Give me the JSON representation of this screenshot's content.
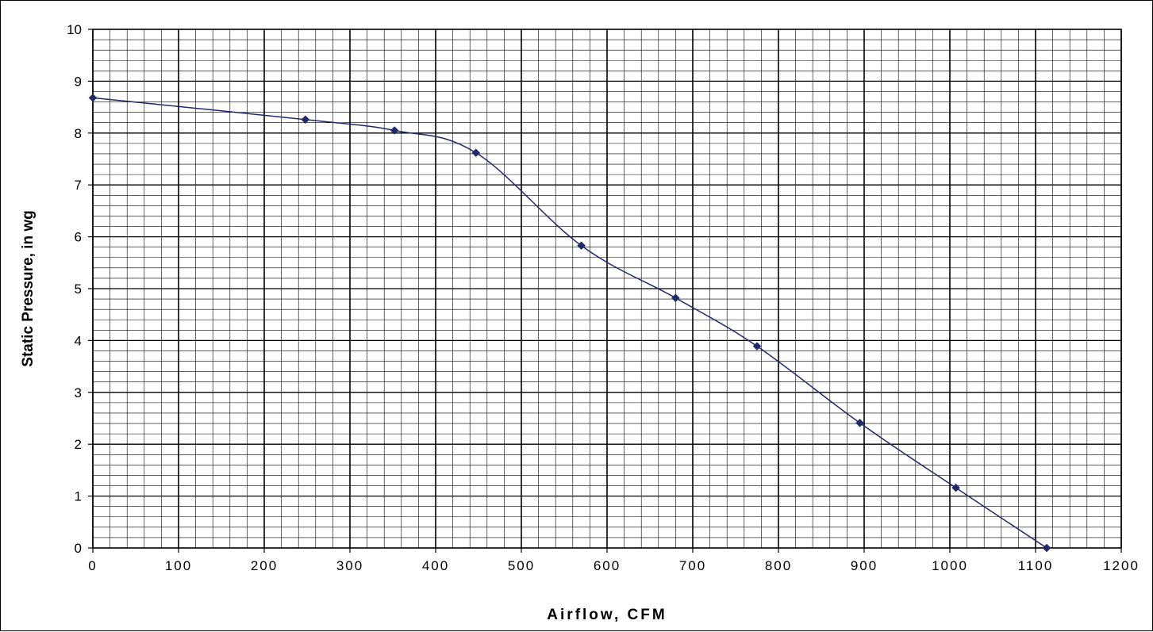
{
  "chart_data": {
    "type": "line",
    "title": "",
    "xlabel": "Airflow, CFM",
    "ylabel": "Static Pressure, in wg",
    "xlim": [
      0,
      1200
    ],
    "ylim": [
      0,
      10
    ],
    "x_ticks": [
      0,
      100,
      200,
      300,
      400,
      500,
      600,
      700,
      800,
      900,
      1000,
      1100,
      1200
    ],
    "y_ticks": [
      0,
      1,
      2,
      3,
      4,
      5,
      6,
      7,
      8,
      9,
      10
    ],
    "grid": true,
    "legend": "none",
    "series": [
      {
        "x": [
          0,
          248,
          352,
          447,
          570,
          680,
          775,
          895,
          1007,
          1113
        ],
        "y": [
          8.68,
          8.26,
          8.05,
          7.62,
          5.83,
          4.82,
          3.89,
          2.41,
          1.16,
          0
        ],
        "color": "#1f2a6b",
        "marker": "diamond"
      }
    ]
  }
}
